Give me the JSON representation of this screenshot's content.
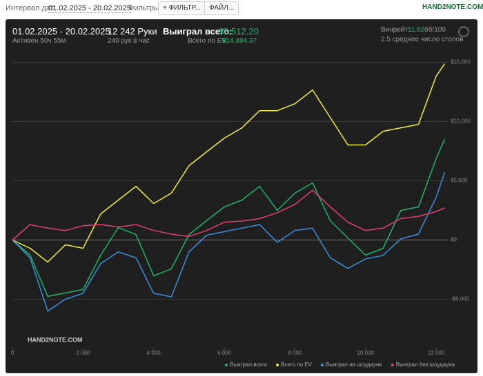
{
  "toolbar": {
    "date_label": "Интервал дат:",
    "date_range": "01.02.2025 - 20.02.2025",
    "filters_label": "Фильтры:",
    "filter_button": "ФИЛЬТР...",
    "file_button": "ФАЙЛ...",
    "logo": "HAND2NOTE.COM"
  },
  "stats": {
    "period": "01.02.2025 - 20.02.2025",
    "active": "Активен 50ч 55м",
    "hands": "12 242 Руки",
    "hands_per_hour": "240 рук в час",
    "won_label": "Выиграл всего:",
    "won_value": "$8,512.20",
    "ev_label": "Всего по EV:",
    "ev_value": "$14,884.37",
    "winrate_label": "Винрейт:",
    "winrate_value": "11.62",
    "winrate_unit": "бб/100",
    "tables": "2.5 среднее число столов"
  },
  "chart_data": {
    "type": "line",
    "watermark": "HAND2NOTE.COM",
    "x": [
      0,
      500,
      1000,
      1500,
      2000,
      2500,
      3000,
      3500,
      4000,
      4500,
      5000,
      5500,
      6000,
      6500,
      7000,
      7500,
      8000,
      8500,
      9000,
      9500,
      10000,
      10500,
      11000,
      11500,
      12000,
      12242
    ],
    "series": [
      {
        "name": "Выиграл всего",
        "color": "#1fb56a",
        "values": [
          0,
          -1280,
          -4760,
          -4470,
          -4180,
          -1280,
          1050,
          460,
          -3020,
          -2440,
          460,
          1630,
          2790,
          3370,
          4530,
          2500,
          3950,
          4820,
          1630,
          170,
          -1280,
          -700,
          2500,
          2790,
          6860,
          8512
        ]
      },
      {
        "name": "Всего по EV",
        "color": "#f2ef3a",
        "values": [
          0,
          -700,
          -1860,
          -400,
          -700,
          2200,
          3370,
          4530,
          3080,
          3950,
          6270,
          7440,
          8600,
          9470,
          10920,
          10920,
          11500,
          12670,
          10340,
          8020,
          8020,
          9180,
          9470,
          9760,
          13830,
          14884
        ]
      },
      {
        "name": "Выиграл на шоудауне",
        "color": "#3b8fe0",
        "values": [
          0,
          -1500,
          -6000,
          -5000,
          -4500,
          -2000,
          -1000,
          -1500,
          -4500,
          -4800,
          -1000,
          400,
          700,
          1000,
          1300,
          -200,
          800,
          1000,
          -1500,
          -2400,
          -1600,
          -1300,
          100,
          500,
          3600,
          5700
        ]
      },
      {
        "name": "Выиграл без шоудауна",
        "color": "#e0436f",
        "values": [
          0,
          1300,
          1000,
          800,
          1200,
          1300,
          1100,
          1300,
          800,
          500,
          300,
          800,
          1500,
          1600,
          1800,
          2300,
          3000,
          4200,
          2800,
          1500,
          800,
          1000,
          1800,
          2000,
          2400,
          2700
        ]
      }
    ],
    "xlim": [
      0,
      12350
    ],
    "ylim": [
      -9100,
      15900
    ],
    "xticks": [
      0,
      {
        "value": 2000,
        "label": "2 000"
      },
      {
        "value": 4000,
        "label": "4 000"
      },
      {
        "value": 6000,
        "label": "6 000"
      },
      {
        "value": 8000,
        "label": "8 000"
      },
      {
        "value": 10000,
        "label": "10 000"
      },
      {
        "value": 12000,
        "label": "12 000"
      }
    ],
    "yticks": [
      {
        "value": -5000,
        "label": "-$5,000"
      },
      {
        "value": 0,
        "label": "$0"
      },
      {
        "value": 5000,
        "label": "$5,000"
      },
      {
        "value": 10000,
        "label": "$10,000"
      },
      {
        "value": 15000,
        "label": "$15,000"
      }
    ],
    "grid": true
  }
}
